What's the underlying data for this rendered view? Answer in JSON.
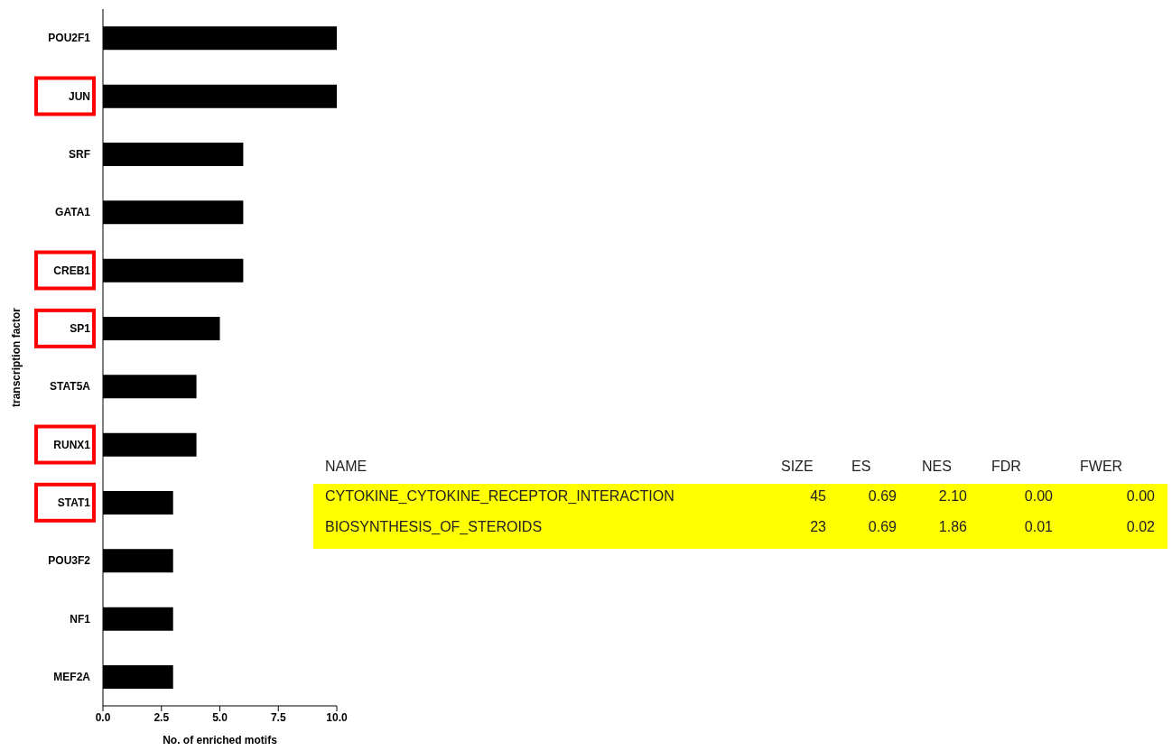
{
  "chart_data": [
    {
      "type": "bar",
      "orientation": "horizontal",
      "xlabel": "No. of enriched motifs",
      "ylabel": "transcription factor",
      "categories": [
        "POU2F1",
        "JUN",
        "SRF",
        "GATA1",
        "CREB1",
        "SP1",
        "STAT5A",
        "RUNX1",
        "STAT1",
        "POU3F2",
        "NF1",
        "MEF2A"
      ],
      "values": [
        10,
        10,
        6,
        6,
        6,
        5,
        4,
        4,
        3,
        3,
        3,
        3
      ],
      "color": "#000000",
      "xlim": [
        0,
        10
      ],
      "xticks": [
        {
          "value": 0,
          "label": "0.0"
        },
        {
          "value": 2.5,
          "label": "2.5"
        },
        {
          "value": 5,
          "label": "5.0"
        },
        {
          "value": 7.5,
          "label": "7.5"
        },
        {
          "value": 10,
          "label": "10.0"
        }
      ],
      "grid": false,
      "legend": false
    },
    {
      "type": "other",
      "annotations": [
        "NAME",
        "SIZE",
        "ES",
        "NES",
        "FDR",
        "FWER",
        "CYTOKINE_CYTOKINE_RECEPTOR_INTERACTION",
        "45",
        "0.69",
        "2.10",
        "0.00",
        "0.00",
        "BIOSYNTHESIS_OF_STEROIDS",
        "23",
        "0.69",
        "1.86",
        "0.01",
        "0.02"
      ]
    }
  ]
}
